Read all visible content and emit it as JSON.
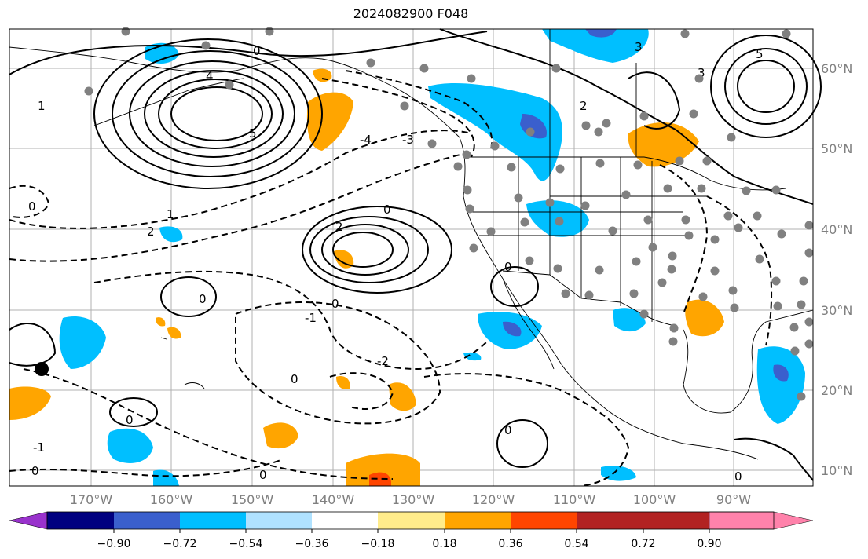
{
  "title": "2024082900 F048",
  "lat_labels": [
    "60°N",
    "50°N",
    "40°N",
    "30°N",
    "20°N",
    "10°N"
  ],
  "lon_labels": [
    "170°W",
    "160°W",
    "150°W",
    "140°W",
    "130°W",
    "120°W",
    "110°W",
    "100°W",
    "90°W"
  ],
  "colorbar": {
    "tick_labels": [
      "−0.90",
      "−0.72",
      "−0.54",
      "−0.36",
      "−0.18",
      "0.18",
      "0.36",
      "0.54",
      "0.72",
      "0.90"
    ],
    "colors": [
      "#9932cc",
      "#000080",
      "#3a5fcd",
      "#00bfff",
      "#b0e2ff",
      "#ffffff",
      "#ffec8b",
      "#ffa500",
      "#ff4500",
      "#b22222",
      "#ff82ab"
    ]
  },
  "contour_labels": [
    "0",
    "1",
    "2",
    "3",
    "4",
    "5",
    "-1",
    "-2",
    "-3",
    "-4"
  ],
  "colors": {
    "land_dot": "#808080",
    "grid": "#b0b0b0",
    "marker": "#000000"
  }
}
